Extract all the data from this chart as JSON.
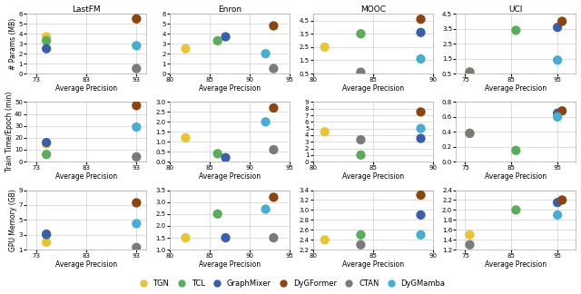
{
  "models": [
    "TGN",
    "TCL",
    "GraphMixer",
    "DyGFormer",
    "CTAN",
    "DyGMamba"
  ],
  "colors": [
    "#E8C43A",
    "#5BAD5B",
    "#3B5EA6",
    "#8B4513",
    "#7A7A7A",
    "#4AADCF"
  ],
  "marker_size": 55,
  "datasets": [
    "LastFM",
    "Enron",
    "MOOC",
    "UCI"
  ],
  "params_data": {
    "LastFM": {
      "ap": [
        75,
        75,
        75,
        93,
        93,
        93
      ],
      "vals": [
        3.7,
        3.3,
        2.5,
        5.5,
        0.5,
        2.8
      ],
      "xlim": [
        71,
        95
      ],
      "xticks": [
        73,
        83,
        93
      ],
      "ylim": [
        0,
        6
      ],
      "yticks": [
        0,
        1,
        2,
        3,
        4,
        5,
        6
      ]
    },
    "Enron": {
      "ap": [
        82,
        86,
        87,
        93,
        93,
        92
      ],
      "vals": [
        2.5,
        3.3,
        3.7,
        4.8,
        0.5,
        2.0
      ],
      "xlim": [
        80,
        95
      ],
      "xticks": [
        80,
        85,
        90,
        95
      ],
      "ylim": [
        0,
        6
      ],
      "yticks": [
        0,
        1,
        2,
        3,
        4,
        5,
        6
      ]
    },
    "MOOC": {
      "ap": [
        81,
        84,
        89,
        89,
        84,
        89
      ],
      "vals": [
        2.5,
        3.5,
        3.6,
        4.6,
        0.6,
        1.6
      ],
      "xlim": [
        80,
        90
      ],
      "xticks": [
        80,
        85,
        90
      ],
      "ylim": [
        0.5,
        5
      ],
      "yticks": [
        0.5,
        1.5,
        2.5,
        3.5,
        4.5
      ]
    },
    "UCI": {
      "ap": [
        76,
        86,
        95,
        96,
        76,
        95
      ],
      "vals": [
        0.6,
        3.4,
        3.6,
        4.0,
        0.6,
        1.4
      ],
      "xlim": [
        73,
        99
      ],
      "xticks": [
        75,
        85,
        95
      ],
      "ylim": [
        0.5,
        4.5
      ],
      "yticks": [
        0.5,
        1.5,
        2.5,
        3.5,
        4.5
      ]
    }
  },
  "time_data": {
    "LastFM": {
      "ap": [
        75,
        75,
        75,
        93,
        93,
        93
      ],
      "vals": [
        15,
        6,
        16,
        47,
        4,
        29
      ],
      "xlim": [
        71,
        95
      ],
      "xticks": [
        73,
        83,
        93
      ],
      "ylim": [
        0,
        50
      ],
      "yticks": [
        0,
        10,
        20,
        30,
        40,
        50
      ]
    },
    "Enron": {
      "ap": [
        82,
        86,
        87,
        93,
        93,
        92
      ],
      "vals": [
        1.2,
        0.4,
        0.2,
        2.7,
        0.6,
        2.0
      ],
      "xlim": [
        80,
        95
      ],
      "xticks": [
        80,
        85,
        90,
        95
      ],
      "ylim": [
        0,
        3
      ],
      "yticks": [
        0,
        0.5,
        1.0,
        1.5,
        2.0,
        2.5,
        3.0
      ]
    },
    "MOOC": {
      "ap": [
        81,
        84,
        89,
        89,
        84,
        89
      ],
      "vals": [
        4.5,
        1.0,
        3.5,
        7.5,
        3.3,
        5.0
      ],
      "xlim": [
        80,
        90
      ],
      "xticks": [
        80,
        85,
        90
      ],
      "ylim": [
        0,
        9
      ],
      "yticks": [
        0,
        1,
        2,
        3,
        4,
        5,
        6,
        7,
        8,
        9
      ]
    },
    "UCI": {
      "ap": [
        76,
        86,
        95,
        96,
        76,
        95
      ],
      "vals": [
        0.38,
        0.15,
        0.65,
        0.68,
        0.38,
        0.6
      ],
      "xlim": [
        73,
        99
      ],
      "xticks": [
        75,
        85,
        95
      ],
      "ylim": [
        0,
        0.8
      ],
      "yticks": [
        0,
        0.2,
        0.4,
        0.6,
        0.8
      ]
    }
  },
  "gpu_data": {
    "LastFM": {
      "ap": [
        75,
        75,
        75,
        93,
        93,
        93
      ],
      "vals": [
        2.0,
        3.0,
        3.1,
        7.3,
        1.3,
        4.5
      ],
      "xlim": [
        71,
        95
      ],
      "xticks": [
        73,
        83,
        93
      ],
      "ylim": [
        1,
        9
      ],
      "yticks": [
        1,
        3,
        5,
        7,
        9
      ]
    },
    "Enron": {
      "ap": [
        82,
        86,
        87,
        93,
        93,
        92
      ],
      "vals": [
        1.5,
        2.5,
        1.5,
        3.2,
        1.5,
        2.7
      ],
      "xlim": [
        80,
        95
      ],
      "xticks": [
        80,
        85,
        90,
        95
      ],
      "ylim": [
        1,
        3.5
      ],
      "yticks": [
        1.0,
        1.5,
        2.0,
        2.5,
        3.0,
        3.5
      ]
    },
    "MOOC": {
      "ap": [
        81,
        84,
        89,
        89,
        84,
        89
      ],
      "vals": [
        2.4,
        2.5,
        2.9,
        3.3,
        2.3,
        2.5
      ],
      "xlim": [
        80,
        90
      ],
      "xticks": [
        80,
        85,
        90
      ],
      "ylim": [
        2.2,
        3.4
      ],
      "yticks": [
        2.2,
        2.4,
        2.6,
        2.8,
        3.0,
        3.2,
        3.4
      ]
    },
    "UCI": {
      "ap": [
        76,
        86,
        95,
        96,
        76,
        95
      ],
      "vals": [
        1.5,
        2.0,
        2.15,
        2.2,
        1.3,
        1.9
      ],
      "xlim": [
        73,
        99
      ],
      "xticks": [
        75,
        85,
        95
      ],
      "ylim": [
        1.2,
        2.4
      ],
      "yticks": [
        1.2,
        1.4,
        1.6,
        1.8,
        2.0,
        2.2,
        2.4
      ]
    }
  },
  "row_ylabels": [
    "# Params (MB)",
    "Train Time/Epoch (min)",
    "GPU Memory (GB)"
  ],
  "xlabel": "Average Precision"
}
